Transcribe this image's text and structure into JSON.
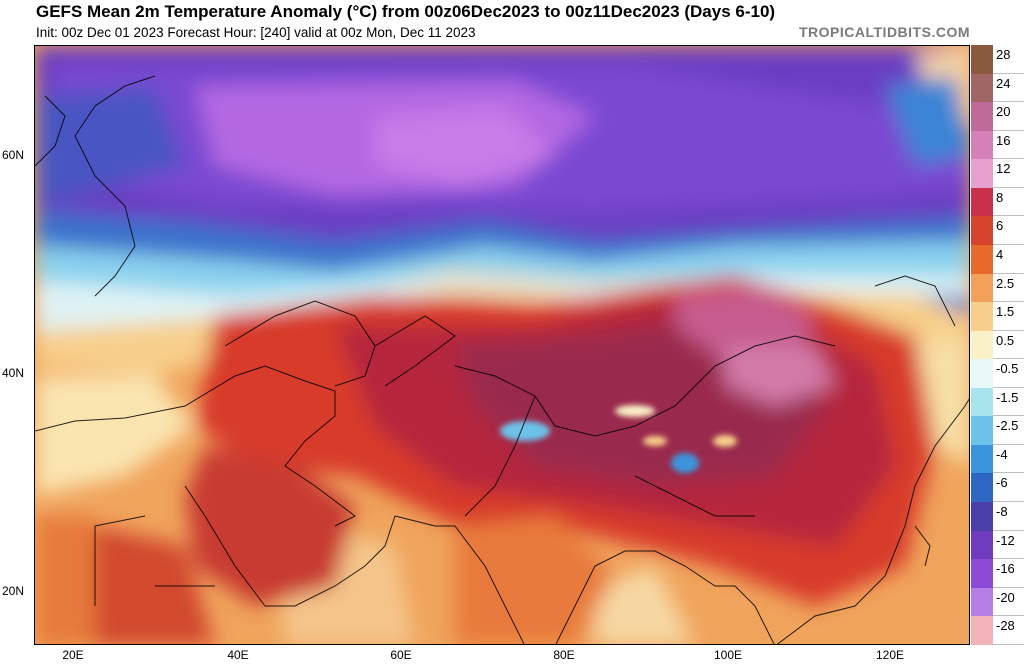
{
  "header": {
    "title": "GEFS Mean 2m Temperature Anomaly (°C) from 00z06Dec2023 to 00z11Dec2023 (Days 6-10)",
    "subtitle": "Init: 00z Dec 01 2023   Forecast Hour: [240]   valid at 00z Mon, Dec 11 2023",
    "brand": "TROPICALTIDBITS.COM"
  },
  "axes": {
    "lat_labels": [
      "60N",
      "40N",
      "20N"
    ],
    "lon_labels": [
      "20E",
      "40E",
      "60E",
      "80E",
      "100E",
      "120E"
    ]
  },
  "colorbar": {
    "labels": [
      "28",
      "24",
      "20",
      "16",
      "12",
      "8",
      "6",
      "4",
      "2.5",
      "1.5",
      "0.5",
      "-0.5",
      "-1.5",
      "-2.5",
      "-4",
      "-6",
      "-8",
      "-12",
      "-16",
      "-20",
      "-28"
    ],
    "colors": [
      "#8b5a3c",
      "#a06666",
      "#c06a9a",
      "#d680b8",
      "#e6a0cf",
      "#c9304a",
      "#d6442e",
      "#e86a2a",
      "#f4a05a",
      "#f8cf8a",
      "#fbf1c8",
      "#e8f7f8",
      "#a8e4ec",
      "#6cc3ea",
      "#3a94dc",
      "#2e66c4",
      "#4a3ea8",
      "#6f3cc0",
      "#8e4ad6",
      "#b57fe6",
      "#f2b3b8"
    ]
  }
}
